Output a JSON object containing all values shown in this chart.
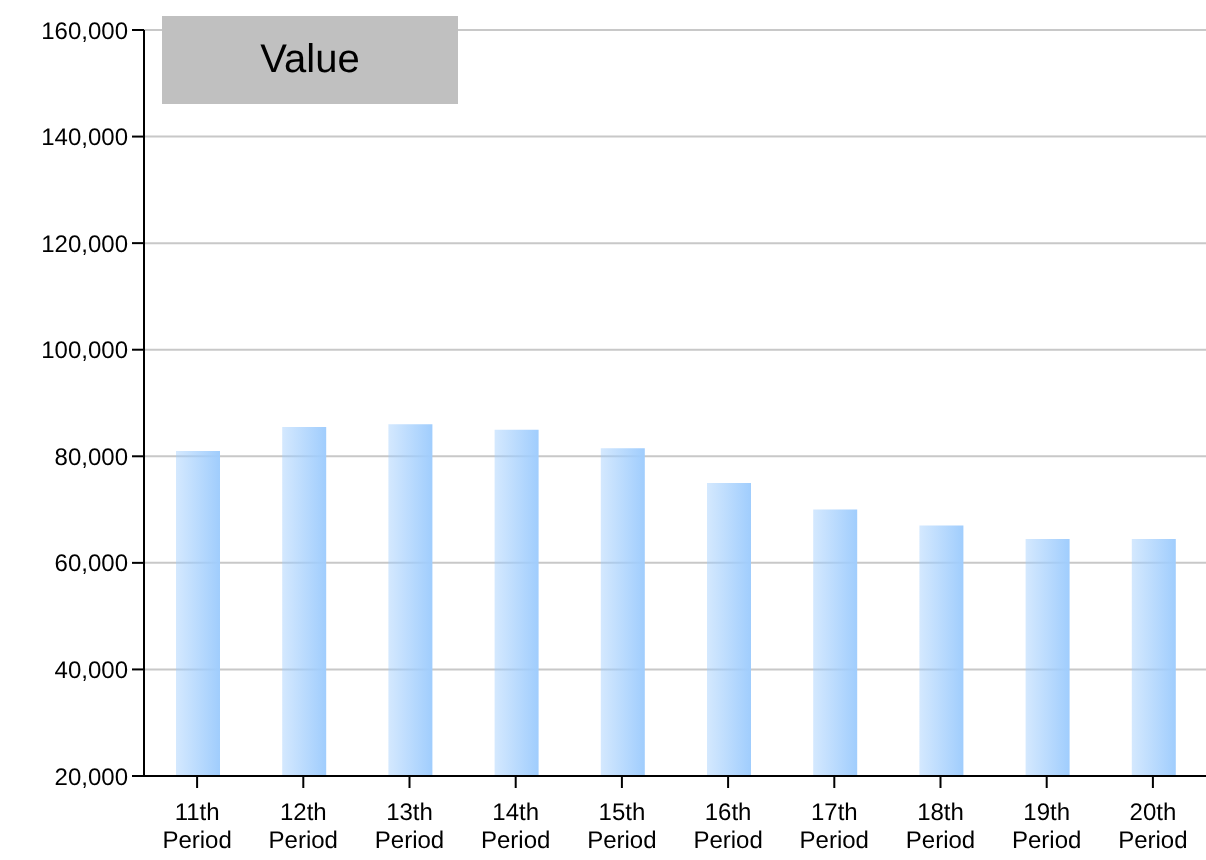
{
  "chart_data": {
    "type": "bar",
    "title": "Value",
    "categories": [
      "11th Period",
      "12th Period",
      "13th Period",
      "14th Period",
      "15th Period",
      "16th Period",
      "17th Period",
      "18th Period",
      "19th Period",
      "20th Period"
    ],
    "values": [
      81000,
      85500,
      86000,
      85000,
      81500,
      75000,
      70000,
      67000,
      64500,
      64500
    ],
    "color": "#a0cdfd",
    "ylim": [
      20000,
      160000
    ],
    "yticks": [
      {
        "value": 20000,
        "label": "20,000"
      },
      {
        "value": 40000,
        "label": "40,000"
      },
      {
        "value": 60000,
        "label": "60,000"
      },
      {
        "value": 80000,
        "label": "80,000"
      },
      {
        "value": 100000,
        "label": "100,000"
      },
      {
        "value": 120000,
        "label": "120,000"
      },
      {
        "value": 140000,
        "label": "140,000"
      },
      {
        "value": 160000,
        "label": "160,000"
      }
    ],
    "grid": "y"
  }
}
